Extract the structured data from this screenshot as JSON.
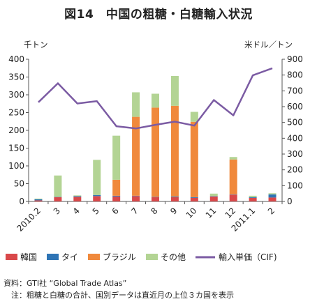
{
  "title": "図14　中国の粗糖・白糖輸入状況",
  "left_unit": "千トン",
  "right_unit": "米ドル／トン",
  "chart_data": {
    "type": "bar",
    "stacked": true,
    "categories": [
      "2010.2",
      "3",
      "4",
      "5",
      "6",
      "7",
      "8",
      "9",
      "10",
      "11",
      "12",
      "2011.1",
      "2"
    ],
    "series": [
      {
        "name": "韓国",
        "color": "#d9484a",
        "values": [
          3,
          12,
          13,
          15,
          14,
          15,
          12,
          12,
          10,
          14,
          19,
          10,
          11
        ]
      },
      {
        "name": "タイ",
        "color": "#2e74b5",
        "values": [
          3,
          1,
          2,
          3,
          2,
          1,
          1,
          2,
          2,
          1,
          1,
          2,
          9
        ]
      },
      {
        "name": "ブラジル",
        "color": "#f0893c",
        "values": [
          0,
          0,
          0,
          0,
          45,
          222,
          251,
          255,
          212,
          0,
          98,
          0,
          0
        ]
      },
      {
        "name": "その他",
        "color": "#b3d494",
        "values": [
          2,
          60,
          2,
          99,
          124,
          69,
          39,
          84,
          28,
          7,
          7,
          4,
          3
        ]
      }
    ],
    "line": {
      "name": "輸入単価（CIF)",
      "color": "#7b5ba3",
      "axis": "right",
      "values": [
        628,
        748,
        620,
        635,
        476,
        462,
        485,
        505,
        480,
        642,
        545,
        798,
        843
      ]
    },
    "ylim_left": [
      0,
      400
    ],
    "ylim_right": [
      0,
      900
    ],
    "yticks_left": [
      0,
      50,
      100,
      150,
      200,
      250,
      300,
      350,
      400
    ],
    "yticks_right": [
      0,
      100,
      200,
      300,
      400,
      500,
      600,
      700,
      800,
      900
    ],
    "grid": false,
    "legend_position": "bottom"
  },
  "notes": [
    "資料：GTI社 “Global Trade Atlas”",
    "　注：粗糖と白糖の合計、国別データは直近月の上位３カ国を表示"
  ]
}
